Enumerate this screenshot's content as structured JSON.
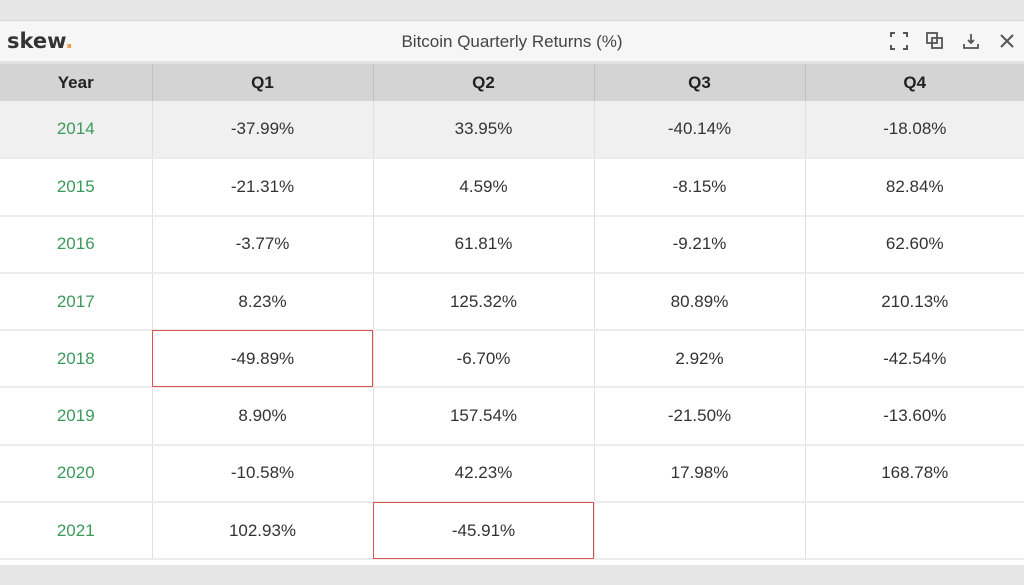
{
  "header": {
    "logo": "skew",
    "logo_dot": ".",
    "title": "Bitcoin Quarterly Returns (%)",
    "icons": [
      "fullscreen-icon",
      "duplicate-icon",
      "download-icon",
      "close-icon"
    ]
  },
  "colors": {
    "year": "#3a9a5a",
    "highlight_border": "#d9534f",
    "logo_dot": "#f0a34a"
  },
  "table": {
    "columns": [
      "Year",
      "Q1",
      "Q2",
      "Q3",
      "Q4"
    ],
    "rows": [
      [
        "2014",
        "-37.99%",
        "33.95%",
        "-40.14%",
        "-18.08%"
      ],
      [
        "2015",
        "-21.31%",
        "4.59%",
        "-8.15%",
        "82.84%"
      ],
      [
        "2016",
        "-3.77%",
        "61.81%",
        "-9.21%",
        "62.60%"
      ],
      [
        "2017",
        "8.23%",
        "125.32%",
        "80.89%",
        "210.13%"
      ],
      [
        "2018",
        "-49.89%",
        "-6.70%",
        "2.92%",
        "-42.54%"
      ],
      [
        "2019",
        "8.90%",
        "157.54%",
        "-21.50%",
        "-13.60%"
      ],
      [
        "2020",
        "-10.58%",
        "42.23%",
        "17.98%",
        "168.78%"
      ],
      [
        "2021",
        "102.93%",
        "-45.91%",
        "",
        ""
      ]
    ],
    "selected_row": 0,
    "flagged_cells": [
      [
        4,
        1
      ],
      [
        7,
        2
      ]
    ]
  }
}
